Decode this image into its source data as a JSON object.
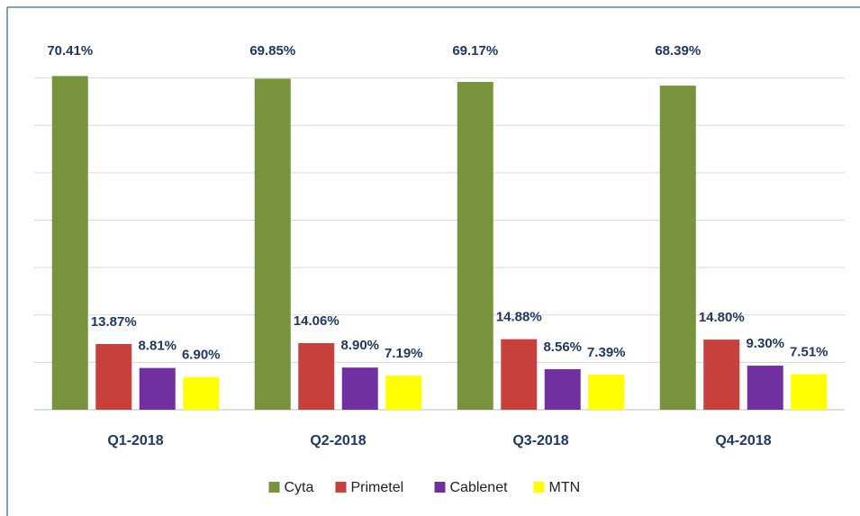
{
  "chart_data": {
    "type": "bar",
    "categories": [
      "Q1-2018",
      "Q2-2018",
      "Q3-2018",
      "Q4-2018"
    ],
    "series": [
      {
        "name": "Cyta",
        "color": "#77933c",
        "values": [
          70.41,
          69.85,
          69.17,
          68.39
        ],
        "value_labels": [
          "70.41%",
          "69.85%",
          "69.17%",
          "68.39%"
        ]
      },
      {
        "name": "Primetel",
        "color": "#c8403c",
        "values": [
          13.87,
          14.06,
          14.88,
          14.8
        ],
        "value_labels": [
          "13.87%",
          "14.06%",
          "14.88%",
          "14.80%"
        ]
      },
      {
        "name": "Cablenet",
        "color": "#7030a0",
        "values": [
          8.81,
          8.9,
          8.56,
          9.3
        ],
        "value_labels": [
          "8.81%",
          "8.90%",
          "8.56%",
          "9.30%"
        ]
      },
      {
        "name": "MTN",
        "color": "#ffff00",
        "values": [
          6.9,
          7.19,
          7.39,
          7.51
        ],
        "value_labels": [
          "6.90%",
          "7.19%",
          "7.39%",
          "7.51%"
        ]
      }
    ],
    "ylim": [
      0,
      80
    ],
    "yticks": [
      0,
      10,
      20,
      30,
      40,
      50,
      60,
      70
    ],
    "grid": true,
    "legend": "bottom"
  }
}
